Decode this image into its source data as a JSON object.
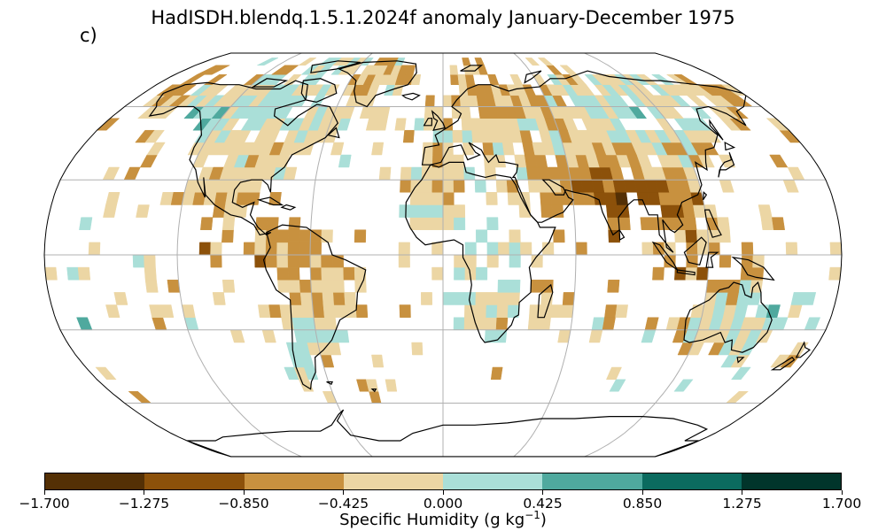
{
  "title": "HadISDH.blendq.1.5.1.2024f anomaly January-December 1975",
  "panel_label": "c)",
  "colorbar": {
    "ticks": [
      "−1.700",
      "−1.275",
      "−0.850",
      "−0.425",
      "0.000",
      "0.425",
      "0.850",
      "1.275",
      "1.700"
    ],
    "colors": [
      "#543005",
      "#8c510a",
      "#bf812d",
      "#dfc27d",
      "#f6e8c3",
      "#c7eae5",
      "#80cdc1",
      "#35978f",
      "#01665e",
      "#003c30"
    ],
    "bins": [
      "#543005",
      "#8c510a",
      "#c8913f",
      "#ecd6a4",
      "#aadfd8",
      "#4fa99e",
      "#0b6b5f",
      "#01352b"
    ],
    "label_main": "Specific Humidity (g kg",
    "label_sup": "−1",
    "label_end": ")"
  },
  "map": {
    "projection": "Robinson",
    "gridlines": true,
    "coastline_color": "#000000",
    "grid_color": "#b0b0b0"
  }
}
